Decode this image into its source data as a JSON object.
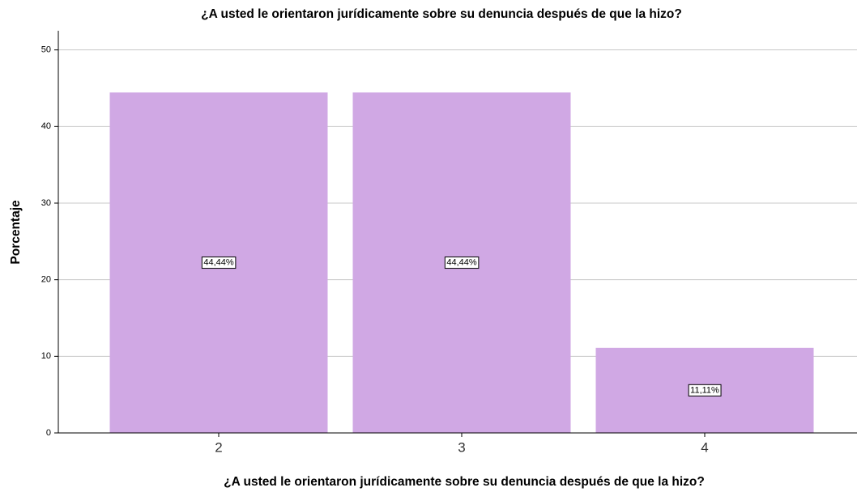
{
  "chart_data": {
    "type": "bar",
    "title": "¿A usted le orientaron jurídicamente sobre su denuncia después de que la hizo?",
    "x_label": "¿A usted le orientaron jurídicamente sobre su denuncia después de que la hizo?",
    "y_label": "Porcentaje",
    "categories": [
      "2",
      "3",
      "4"
    ],
    "values": [
      44.44,
      44.44,
      11.11
    ],
    "value_labels": [
      "44,44%",
      "44,44%",
      "11,11%"
    ],
    "color": "#d0a8e4",
    "ylim": [
      0,
      52.5
    ],
    "yticks": [
      0,
      10,
      20,
      30,
      40,
      50
    ],
    "grid": true
  }
}
